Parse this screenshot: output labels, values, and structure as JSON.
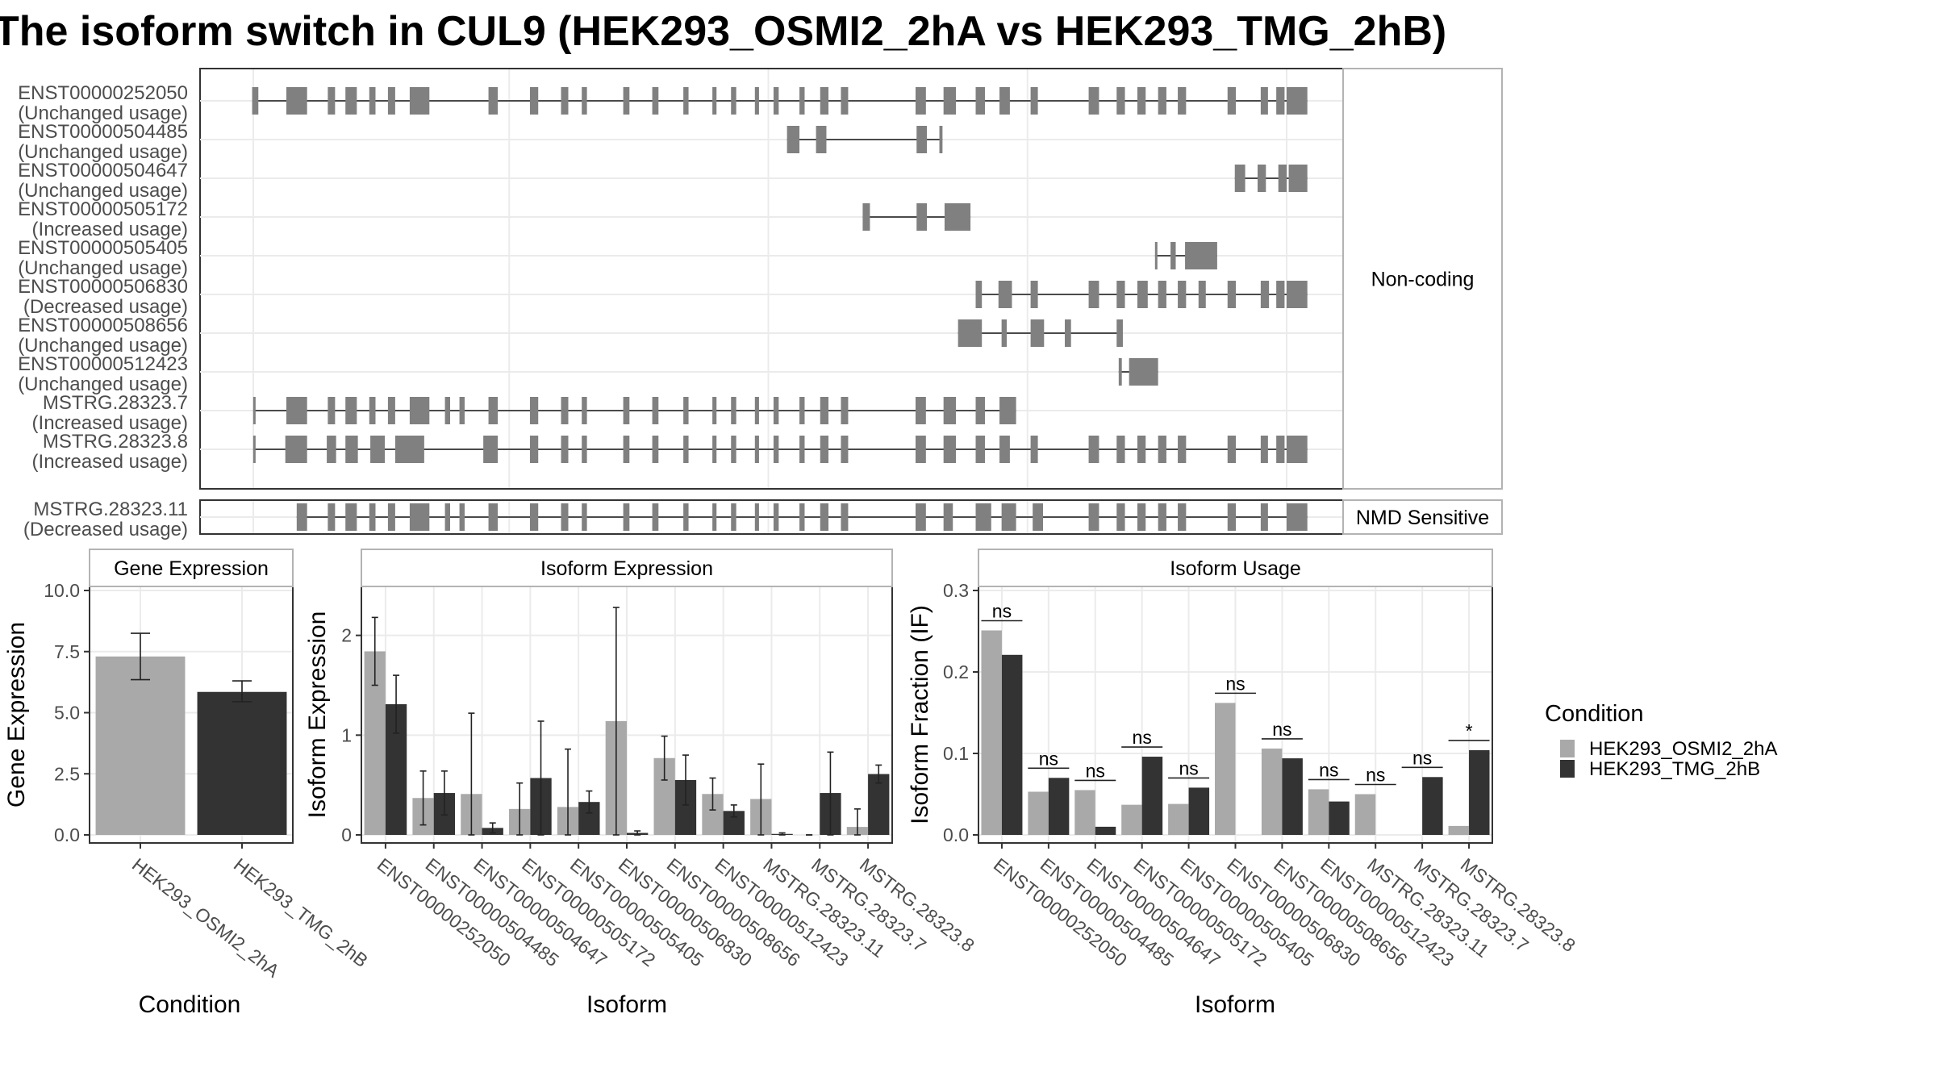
{
  "title": "The isoform switch in CUL9 (HEK293_OSMI2_2hA vs HEK293_TMG_2hB)",
  "colors": {
    "cond_a": "#a9a9a9",
    "cond_b": "#333333",
    "exon": "#808080"
  },
  "structure": {
    "panels": [
      {
        "strip": "Non-coding",
        "transcripts": [
          {
            "id": "ENST00000252050",
            "usage": "(Unchanged usage)",
            "exons": [
              [
                0.2,
                0.8
              ],
              [
                3.5,
                5.5
              ],
              [
                7.5,
                8.2
              ],
              [
                9.2,
                10.3
              ],
              [
                11.5,
                12.1
              ],
              [
                13.3,
                14.0
              ],
              [
                15.4,
                17.3
              ],
              [
                23.0,
                23.9
              ],
              [
                27.0,
                27.8
              ],
              [
                30.0,
                30.7
              ],
              [
                32.0,
                32.5
              ],
              [
                36.0,
                36.6
              ],
              [
                38.8,
                39.4
              ],
              [
                41.8,
                42.3
              ],
              [
                44.6,
                45.0
              ],
              [
                46.4,
                46.9
              ],
              [
                48.7,
                49.1
              ],
              [
                50.5,
                51.0
              ],
              [
                53.0,
                53.5
              ],
              [
                55.0,
                55.8
              ],
              [
                57.0,
                57.7
              ],
              [
                64.2,
                65.2
              ],
              [
                66.9,
                68.1
              ],
              [
                70.0,
                70.9
              ],
              [
                72.3,
                73.3
              ],
              [
                75.3,
                76.0
              ],
              [
                80.9,
                81.9
              ],
              [
                83.6,
                84.4
              ],
              [
                85.6,
                86.4
              ],
              [
                87.6,
                88.4
              ],
              [
                89.5,
                90.3
              ],
              [
                94.3,
                95.1
              ],
              [
                97.5,
                98.2
              ],
              [
                99.0,
                99.8
              ],
              [
                100,
                102.0
              ]
            ]
          },
          {
            "id": "ENST00000504485",
            "usage": "(Unchanged usage)",
            "exons": [
              [
                51.8,
                53.0
              ],
              [
                54.6,
                55.6
              ],
              [
                64.3,
                65.3
              ],
              [
                66.5,
                66.8
              ]
            ]
          },
          {
            "id": "ENST00000504647",
            "usage": "(Unchanged usage)",
            "exons": [
              [
                95.0,
                96.0
              ],
              [
                97.2,
                98.0
              ],
              [
                99.2,
                100.0
              ],
              [
                100.2,
                102.0
              ]
            ]
          },
          {
            "id": "ENST00000505172",
            "usage": "(Increased usage)",
            "exons": [
              [
                59.1,
                59.8
              ],
              [
                64.3,
                65.3
              ],
              [
                67.0,
                69.5
              ]
            ]
          },
          {
            "id": "ENST00000505405",
            "usage": "(Unchanged usage)",
            "exons": [
              [
                87.3,
                87.5
              ],
              [
                88.8,
                89.3
              ],
              [
                90.2,
                93.3
              ]
            ]
          },
          {
            "id": "ENST00000506830",
            "usage": "(Decreased usage)",
            "exons": [
              [
                70.0,
                70.6
              ],
              [
                72.2,
                73.5
              ],
              [
                75.3,
                76.0
              ],
              [
                80.9,
                81.9
              ],
              [
                83.6,
                84.4
              ],
              [
                85.6,
                86.6
              ],
              [
                87.6,
                88.4
              ],
              [
                89.5,
                90.3
              ],
              [
                91.5,
                92.2
              ],
              [
                94.3,
                95.1
              ],
              [
                97.5,
                98.3
              ],
              [
                99.0,
                99.8
              ],
              [
                100,
                102.0
              ]
            ]
          },
          {
            "id": "ENST00000508656",
            "usage": "(Unchanged usage)",
            "exons": [
              [
                68.3,
                70.6
              ],
              [
                72.5,
                73.0
              ],
              [
                75.3,
                76.6
              ],
              [
                78.6,
                79.2
              ],
              [
                83.6,
                84.2
              ]
            ]
          },
          {
            "id": "ENST00000512423",
            "usage": "(Unchanged usage)",
            "exons": [
              [
                83.8,
                84.1
              ],
              [
                84.8,
                87.6
              ]
            ]
          },
          {
            "id": "MSTRG.28323.7",
            "usage": "(Increased usage)",
            "exons": [
              [
                0.3,
                0.5
              ],
              [
                3.5,
                5.5
              ],
              [
                7.5,
                8.2
              ],
              [
                9.2,
                10.3
              ],
              [
                11.5,
                12.1
              ],
              [
                13.3,
                14.0
              ],
              [
                15.4,
                17.3
              ],
              [
                18.8,
                19.3
              ],
              [
                20.2,
                20.7
              ],
              [
                23.0,
                23.9
              ],
              [
                27.0,
                27.8
              ],
              [
                30.0,
                30.7
              ],
              [
                32.0,
                32.5
              ],
              [
                36.0,
                36.6
              ],
              [
                38.8,
                39.4
              ],
              [
                41.8,
                42.3
              ],
              [
                44.6,
                45.0
              ],
              [
                46.4,
                46.9
              ],
              [
                48.7,
                49.1
              ],
              [
                50.5,
                51.0
              ],
              [
                53.0,
                53.5
              ],
              [
                55.0,
                55.8
              ],
              [
                57.0,
                57.7
              ],
              [
                64.2,
                65.2
              ],
              [
                66.9,
                68.1
              ],
              [
                70.0,
                70.9
              ],
              [
                72.3,
                73.9
              ]
            ]
          },
          {
            "id": "MSTRG.28323.8",
            "usage": "(Increased usage)",
            "exons": [
              [
                0.3,
                0.5
              ],
              [
                3.4,
                5.5
              ],
              [
                7.4,
                8.3
              ],
              [
                9.2,
                10.4
              ],
              [
                11.6,
                13.0
              ],
              [
                14.0,
                16.8
              ],
              [
                22.5,
                23.9
              ],
              [
                27.0,
                27.8
              ],
              [
                30.0,
                30.7
              ],
              [
                32.0,
                32.5
              ],
              [
                36.0,
                36.6
              ],
              [
                38.8,
                39.4
              ],
              [
                41.8,
                42.3
              ],
              [
                44.6,
                45.0
              ],
              [
                46.4,
                46.9
              ],
              [
                48.7,
                49.1
              ],
              [
                50.5,
                51.0
              ],
              [
                53.0,
                53.5
              ],
              [
                55.0,
                55.8
              ],
              [
                57.0,
                57.7
              ],
              [
                64.2,
                65.2
              ],
              [
                66.9,
                68.1
              ],
              [
                70.0,
                70.9
              ],
              [
                72.3,
                73.3
              ],
              [
                75.3,
                76.0
              ],
              [
                80.9,
                81.9
              ],
              [
                83.6,
                84.4
              ],
              [
                85.6,
                86.4
              ],
              [
                87.6,
                88.4
              ],
              [
                89.5,
                90.3
              ],
              [
                94.3,
                95.1
              ],
              [
                97.5,
                98.2
              ],
              [
                99.0,
                99.8
              ],
              [
                100,
                102.0
              ]
            ]
          }
        ]
      },
      {
        "strip": "NMD Sensitive",
        "transcripts": [
          {
            "id": "MSTRG.28323.11",
            "usage": "(Decreased usage)",
            "exons": [
              [
                4.5,
                5.5
              ],
              [
                7.5,
                8.2
              ],
              [
                9.2,
                10.3
              ],
              [
                11.5,
                12.1
              ],
              [
                13.3,
                14.0
              ],
              [
                15.4,
                17.3
              ],
              [
                18.8,
                19.3
              ],
              [
                20.2,
                20.7
              ],
              [
                23.0,
                23.9
              ],
              [
                27.0,
                27.8
              ],
              [
                30.0,
                30.7
              ],
              [
                32.0,
                32.5
              ],
              [
                36.0,
                36.6
              ],
              [
                38.8,
                39.4
              ],
              [
                41.8,
                42.3
              ],
              [
                44.6,
                45.0
              ],
              [
                46.4,
                46.9
              ],
              [
                48.7,
                49.1
              ],
              [
                50.5,
                51.0
              ],
              [
                53.0,
                53.5
              ],
              [
                55.0,
                55.8
              ],
              [
                57.0,
                57.7
              ],
              [
                64.2,
                65.2
              ],
              [
                66.9,
                67.8
              ],
              [
                70.0,
                71.5
              ],
              [
                72.5,
                73.9
              ],
              [
                75.5,
                76.5
              ],
              [
                80.9,
                81.9
              ],
              [
                83.6,
                84.4
              ],
              [
                85.6,
                86.4
              ],
              [
                87.6,
                88.4
              ],
              [
                89.5,
                90.3
              ],
              [
                94.3,
                95.1
              ],
              [
                97.5,
                98.2
              ],
              [
                100,
                102.0
              ]
            ]
          }
        ]
      }
    ]
  },
  "chart_data": [
    {
      "type": "bar",
      "title": "Gene Expression",
      "xlabel": "Condition",
      "ylabel": "Gene Expression",
      "ylim": [
        0,
        10
      ],
      "yticks": [
        "0.0",
        "2.5",
        "5.0",
        "7.5",
        "10.0"
      ],
      "categories": [
        "HEK293_OSMI2_2hA",
        "HEK293_TMG_2hB"
      ],
      "values": [
        7.3,
        5.85
      ],
      "errors_low": [
        6.35,
        5.45
      ],
      "errors_high": [
        8.25,
        6.3
      ]
    },
    {
      "type": "bar",
      "title": "Isoform Expression",
      "xlabel": "Isoform",
      "ylabel": "Isoform Expression",
      "ylim": [
        0,
        2.45
      ],
      "yticks": [
        "0",
        "1",
        "2"
      ],
      "categories": [
        "ENST00000252050",
        "ENST00000504485",
        "ENST00000504647",
        "ENST00000505172",
        "ENST00000505405",
        "ENST00000506830",
        "ENST00000508656",
        "ENST00000512423",
        "MSTRG.28323.11",
        "MSTRG.28323.7",
        "MSTRG.28323.8"
      ],
      "series": [
        {
          "name": "HEK293_OSMI2_2hA",
          "values": [
            1.84,
            0.37,
            0.41,
            0.26,
            0.28,
            1.14,
            0.77,
            0.41,
            0.36,
            0,
            0.08
          ],
          "err_low": [
            1.5,
            0.1,
            0,
            0,
            0,
            0,
            0.55,
            0.25,
            0,
            0,
            0
          ],
          "err_high": [
            2.18,
            0.64,
            1.22,
            0.52,
            0.86,
            2.28,
            0.99,
            0.57,
            0.71,
            0,
            0.26
          ]
        },
        {
          "name": "HEK293_TMG_2hB",
          "values": [
            1.31,
            0.42,
            0.07,
            0.57,
            0.33,
            0.02,
            0.55,
            0.24,
            0.01,
            0.42,
            0.61
          ],
          "err_low": [
            1.02,
            0.2,
            0.02,
            0,
            0.22,
            0,
            0.3,
            0.18,
            0,
            0,
            0.52
          ],
          "err_high": [
            1.6,
            0.64,
            0.12,
            1.14,
            0.44,
            0.04,
            0.8,
            0.3,
            0.02,
            0.83,
            0.7
          ]
        }
      ]
    },
    {
      "type": "bar",
      "title": "Isoform Usage",
      "xlabel": "Isoform",
      "ylabel": "Isoform Fraction (IF)",
      "ylim": [
        0,
        0.3
      ],
      "yticks": [
        "0.0",
        "0.1",
        "0.2",
        "0.3"
      ],
      "categories": [
        "ENST00000252050",
        "ENST00000504485",
        "ENST00000504647",
        "ENST00000505172",
        "ENST00000505405",
        "ENST00000506830",
        "ENST00000508656",
        "ENST00000512423",
        "MSTRG.28323.11",
        "MSTRG.28323.7",
        "MSTRG.28323.8"
      ],
      "series": [
        {
          "name": "HEK293_OSMI2_2hA",
          "values": [
            0.251,
            0.053,
            0.055,
            0.037,
            0.038,
            0.162,
            0.106,
            0.056,
            0.05,
            0,
            0.011
          ]
        },
        {
          "name": "HEK293_TMG_2hB",
          "values": [
            0.221,
            0.07,
            0.01,
            0.096,
            0.058,
            0,
            0.094,
            0.041,
            0,
            0.071,
            0.104
          ]
        }
      ],
      "significance": [
        "ns",
        "ns",
        "ns",
        "ns",
        "ns",
        "ns",
        "ns",
        "ns",
        "ns",
        "ns",
        "*"
      ]
    }
  ],
  "legend": {
    "title": "Condition",
    "items": [
      {
        "label": "HEK293_OSMI2_2hA",
        "color": "#a9a9a9"
      },
      {
        "label": "HEK293_TMG_2hB",
        "color": "#333333"
      }
    ]
  }
}
